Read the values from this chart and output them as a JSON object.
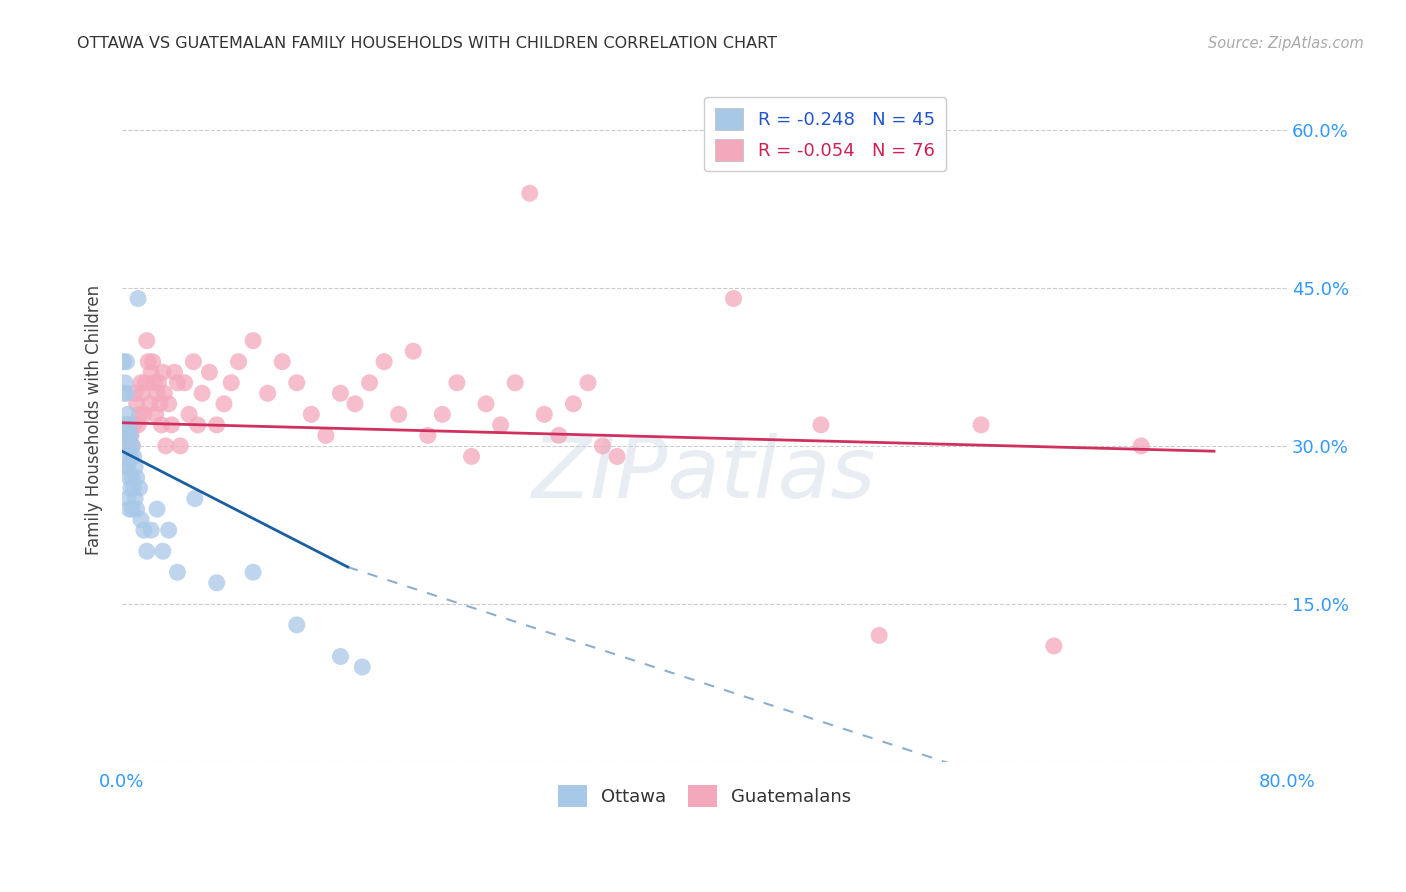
{
  "title": "OTTAWA VS GUATEMALAN FAMILY HOUSEHOLDS WITH CHILDREN CORRELATION CHART",
  "source": "Source: ZipAtlas.com",
  "ylabel": "Family Households with Children",
  "ytick_vals": [
    0.0,
    0.15,
    0.3,
    0.45,
    0.6
  ],
  "xlim": [
    0.0,
    0.8
  ],
  "ylim": [
    0.0,
    0.65
  ],
  "ottawa_R": -0.248,
  "ottawa_N": 45,
  "guatemalan_R": -0.054,
  "guatemalan_N": 76,
  "ottawa_color": "#a8c8e8",
  "guatemalan_color": "#f4a8bc",
  "ottawa_line_color": "#1a5fa0",
  "guatemalan_line_color": "#d03060",
  "watermark_text": "ZIPatlas",
  "legend_label_ottawa": "Ottawa",
  "legend_label_guatemalan": "Guatemalans",
  "background_color": "#ffffff",
  "grid_color": "#cccccc",
  "ottawa_line": [
    0.0,
    0.295,
    0.155,
    0.185
  ],
  "ottawa_dash": [
    0.155,
    0.185,
    0.72,
    -0.07
  ],
  "guate_line": [
    0.0,
    0.322,
    0.75,
    0.295
  ],
  "ottawa_x": [
    0.001,
    0.001,
    0.002,
    0.002,
    0.002,
    0.003,
    0.003,
    0.003,
    0.003,
    0.004,
    0.004,
    0.004,
    0.004,
    0.005,
    0.005,
    0.005,
    0.005,
    0.006,
    0.006,
    0.006,
    0.007,
    0.007,
    0.007,
    0.008,
    0.008,
    0.009,
    0.009,
    0.01,
    0.01,
    0.011,
    0.012,
    0.013,
    0.015,
    0.017,
    0.02,
    0.024,
    0.028,
    0.032,
    0.038,
    0.05,
    0.065,
    0.09,
    0.12,
    0.15,
    0.165
  ],
  "ottawa_y": [
    0.38,
    0.35,
    0.36,
    0.32,
    0.29,
    0.38,
    0.35,
    0.31,
    0.28,
    0.33,
    0.31,
    0.28,
    0.25,
    0.32,
    0.3,
    0.27,
    0.24,
    0.31,
    0.29,
    0.26,
    0.3,
    0.27,
    0.24,
    0.29,
    0.26,
    0.28,
    0.25,
    0.27,
    0.24,
    0.44,
    0.26,
    0.23,
    0.22,
    0.2,
    0.22,
    0.24,
    0.2,
    0.22,
    0.18,
    0.25,
    0.17,
    0.18,
    0.13,
    0.1,
    0.09
  ],
  "guatemalan_x": [
    0.002,
    0.003,
    0.004,
    0.005,
    0.006,
    0.007,
    0.008,
    0.009,
    0.01,
    0.011,
    0.012,
    0.013,
    0.014,
    0.015,
    0.016,
    0.017,
    0.018,
    0.019,
    0.02,
    0.021,
    0.022,
    0.023,
    0.024,
    0.025,
    0.026,
    0.027,
    0.028,
    0.029,
    0.03,
    0.032,
    0.034,
    0.036,
    0.038,
    0.04,
    0.043,
    0.046,
    0.049,
    0.052,
    0.055,
    0.06,
    0.065,
    0.07,
    0.075,
    0.08,
    0.09,
    0.1,
    0.11,
    0.12,
    0.13,
    0.14,
    0.15,
    0.16,
    0.17,
    0.18,
    0.19,
    0.2,
    0.21,
    0.22,
    0.23,
    0.24,
    0.25,
    0.26,
    0.27,
    0.28,
    0.29,
    0.3,
    0.31,
    0.32,
    0.33,
    0.34,
    0.42,
    0.48,
    0.52,
    0.59,
    0.64,
    0.7
  ],
  "guatemalan_y": [
    0.32,
    0.31,
    0.3,
    0.32,
    0.31,
    0.3,
    0.32,
    0.35,
    0.34,
    0.32,
    0.33,
    0.36,
    0.35,
    0.33,
    0.36,
    0.4,
    0.38,
    0.34,
    0.37,
    0.38,
    0.36,
    0.33,
    0.35,
    0.36,
    0.34,
    0.32,
    0.37,
    0.35,
    0.3,
    0.34,
    0.32,
    0.37,
    0.36,
    0.3,
    0.36,
    0.33,
    0.38,
    0.32,
    0.35,
    0.37,
    0.32,
    0.34,
    0.36,
    0.38,
    0.4,
    0.35,
    0.38,
    0.36,
    0.33,
    0.31,
    0.35,
    0.34,
    0.36,
    0.38,
    0.33,
    0.39,
    0.31,
    0.33,
    0.36,
    0.29,
    0.34,
    0.32,
    0.36,
    0.54,
    0.33,
    0.31,
    0.34,
    0.36,
    0.3,
    0.29,
    0.44,
    0.32,
    0.12,
    0.32,
    0.11,
    0.3
  ]
}
